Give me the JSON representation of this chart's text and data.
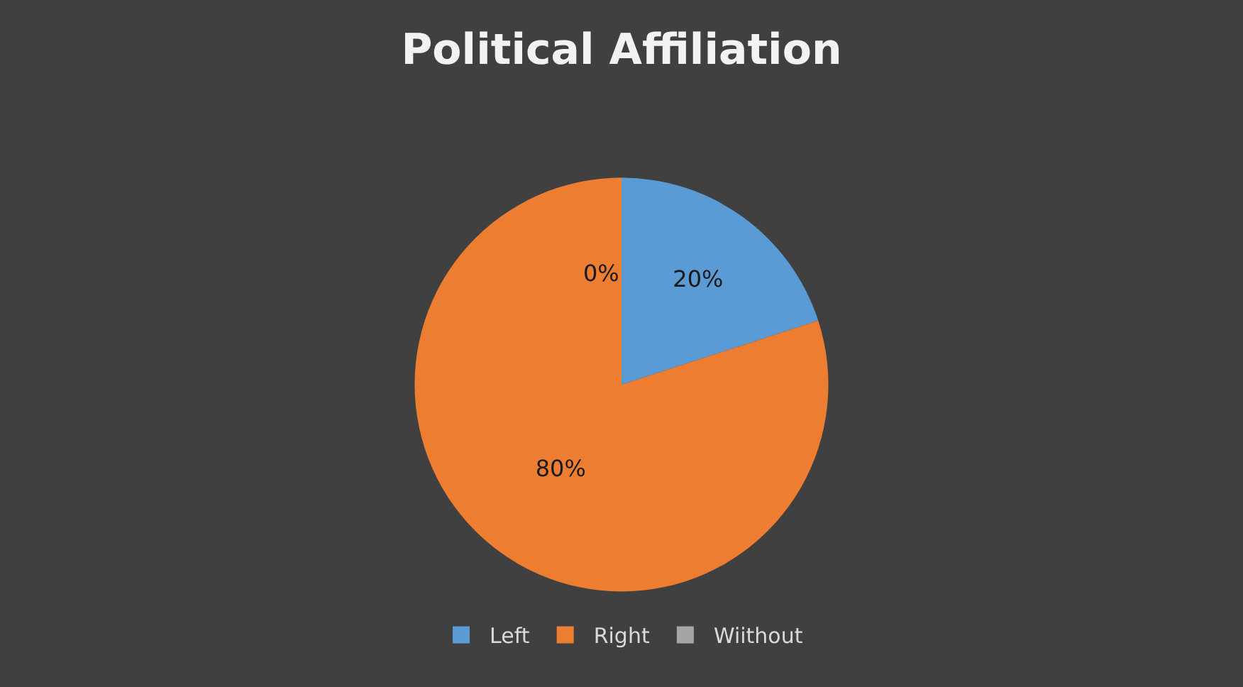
{
  "chart_data": {
    "type": "pie",
    "title": "Political Affiliation",
    "categories": [
      "Left",
      "Right",
      "Wiithout"
    ],
    "values": [
      20,
      80,
      0
    ],
    "colors": [
      "#5b9bd5",
      "#ed7d31",
      "#a5a5a5"
    ],
    "value_labels": [
      "20%",
      "80%",
      "0%"
    ],
    "legend": "bottom"
  }
}
